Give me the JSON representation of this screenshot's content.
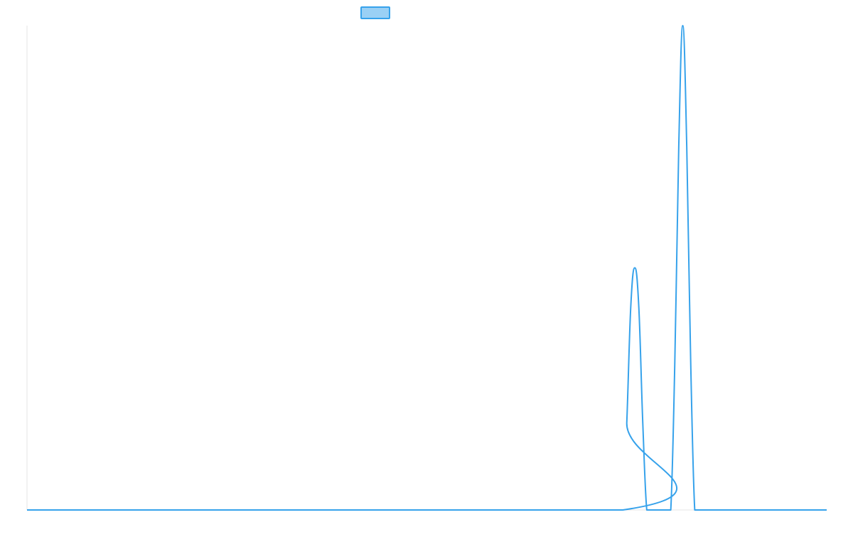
{
  "chart_data": {
    "type": "line",
    "title": "",
    "xlabel": "",
    "ylabel": "",
    "legend": {
      "placement": "top-center",
      "entries": [
        {
          "label": "",
          "color": "#36a2eb",
          "fill": "#9ad0f5"
        }
      ]
    },
    "grid": false,
    "xlim": [
      0,
      1
    ],
    "ylim": [
      0,
      1
    ],
    "series": [
      {
        "color": "#36a2eb",
        "x": [
          0.0,
          0.745,
          0.75,
          0.755,
          0.76,
          0.765,
          0.77,
          0.775,
          0.78,
          0.785,
          0.79,
          0.795,
          0.8,
          0.805,
          0.81,
          0.815,
          0.82,
          0.825,
          0.83,
          0.835,
          0.84,
          0.845,
          0.85,
          0.855,
          0.86,
          0.865,
          0.87,
          0.875,
          0.88,
          0.885,
          1.0
        ],
        "y": [
          0.0,
          0.0,
          0.18,
          0.42,
          0.5,
          0.42,
          0.18,
          0.0,
          0.0,
          0.0,
          0.0,
          0.0,
          0.0,
          0.0,
          0.3,
          0.75,
          1.0,
          0.75,
          0.3,
          0.0,
          0.0,
          0.0,
          0.0,
          0.0,
          0.0,
          0.0,
          0.0,
          0.0,
          0.0,
          0.0,
          0.0
        ]
      }
    ]
  }
}
